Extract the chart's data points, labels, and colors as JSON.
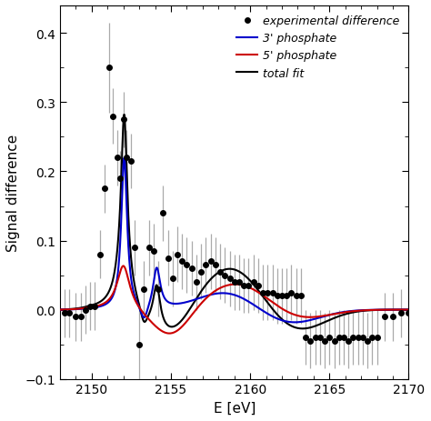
{
  "title": "",
  "xlabel": "E [eV]",
  "ylabel": "Signal difference",
  "xlim": [
    2148,
    2170
  ],
  "ylim": [
    -0.1,
    0.44
  ],
  "yticks": [
    -0.1,
    0.0,
    0.1,
    0.2,
    0.3,
    0.4
  ],
  "xticks": [
    2150,
    2155,
    2160,
    2165,
    2170
  ],
  "bg_color": "#ffffff",
  "scatter_color": "#000000",
  "line_3prime_color": "#0000cc",
  "line_5prime_color": "#cc0000",
  "line_total_color": "#000000",
  "exp_x": [
    2148.3,
    2148.6,
    2149.0,
    2149.3,
    2149.6,
    2149.9,
    2150.2,
    2150.5,
    2150.8,
    2151.1,
    2151.3,
    2151.6,
    2151.8,
    2152.0,
    2152.2,
    2152.5,
    2152.7,
    2153.0,
    2153.3,
    2153.6,
    2153.9,
    2154.2,
    2154.5,
    2154.8,
    2155.1,
    2155.4,
    2155.7,
    2156.0,
    2156.3,
    2156.6,
    2156.9,
    2157.2,
    2157.5,
    2157.8,
    2158.1,
    2158.4,
    2158.7,
    2159.0,
    2159.3,
    2159.6,
    2159.9,
    2160.2,
    2160.5,
    2160.8,
    2161.1,
    2161.4,
    2161.7,
    2162.0,
    2162.3,
    2162.6,
    2162.9,
    2163.2,
    2163.5,
    2163.8,
    2164.1,
    2164.4,
    2164.7,
    2165.0,
    2165.3,
    2165.6,
    2165.9,
    2166.2,
    2166.5,
    2166.8,
    2167.1,
    2167.4,
    2167.7,
    2168.0,
    2168.5,
    2169.0,
    2169.5,
    2170.0
  ],
  "exp_y": [
    -0.005,
    -0.005,
    -0.01,
    -0.01,
    0.0,
    0.005,
    0.005,
    0.08,
    0.175,
    0.35,
    0.28,
    0.22,
    0.19,
    0.275,
    0.22,
    0.215,
    0.09,
    -0.05,
    0.03,
    0.09,
    0.085,
    0.03,
    0.14,
    0.075,
    0.045,
    0.08,
    0.07,
    0.065,
    0.06,
    0.04,
    0.055,
    0.065,
    0.07,
    0.065,
    0.055,
    0.05,
    0.045,
    0.04,
    0.04,
    0.035,
    0.035,
    0.04,
    0.035,
    0.025,
    0.025,
    0.025,
    0.02,
    0.02,
    0.02,
    0.025,
    0.02,
    0.02,
    -0.04,
    -0.045,
    -0.04,
    -0.04,
    -0.045,
    -0.04,
    -0.045,
    -0.04,
    -0.04,
    -0.045,
    -0.04,
    -0.04,
    -0.04,
    -0.045,
    -0.04,
    -0.04,
    -0.01,
    -0.01,
    -0.005,
    -0.005
  ],
  "exp_yerr": [
    0.035,
    0.035,
    0.035,
    0.035,
    0.035,
    0.035,
    0.035,
    0.035,
    0.035,
    0.065,
    0.04,
    0.04,
    0.04,
    0.04,
    0.04,
    0.04,
    0.04,
    0.06,
    0.04,
    0.04,
    0.04,
    0.04,
    0.04,
    0.04,
    0.04,
    0.04,
    0.04,
    0.04,
    0.04,
    0.04,
    0.04,
    0.04,
    0.04,
    0.04,
    0.04,
    0.04,
    0.04,
    0.04,
    0.04,
    0.04,
    0.04,
    0.04,
    0.04,
    0.04,
    0.04,
    0.04,
    0.04,
    0.04,
    0.04,
    0.04,
    0.04,
    0.04,
    0.04,
    0.04,
    0.04,
    0.04,
    0.04,
    0.04,
    0.04,
    0.04,
    0.04,
    0.04,
    0.04,
    0.04,
    0.04,
    0.04,
    0.04,
    0.04,
    0.035,
    0.035,
    0.035,
    0.04
  ],
  "legend_labels": [
    "experimental difference",
    "3' phosphate",
    "5' phosphate",
    "total fit"
  ],
  "legend_fontsize": 9,
  "axis_fontsize": 11,
  "tick_fontsize": 10
}
